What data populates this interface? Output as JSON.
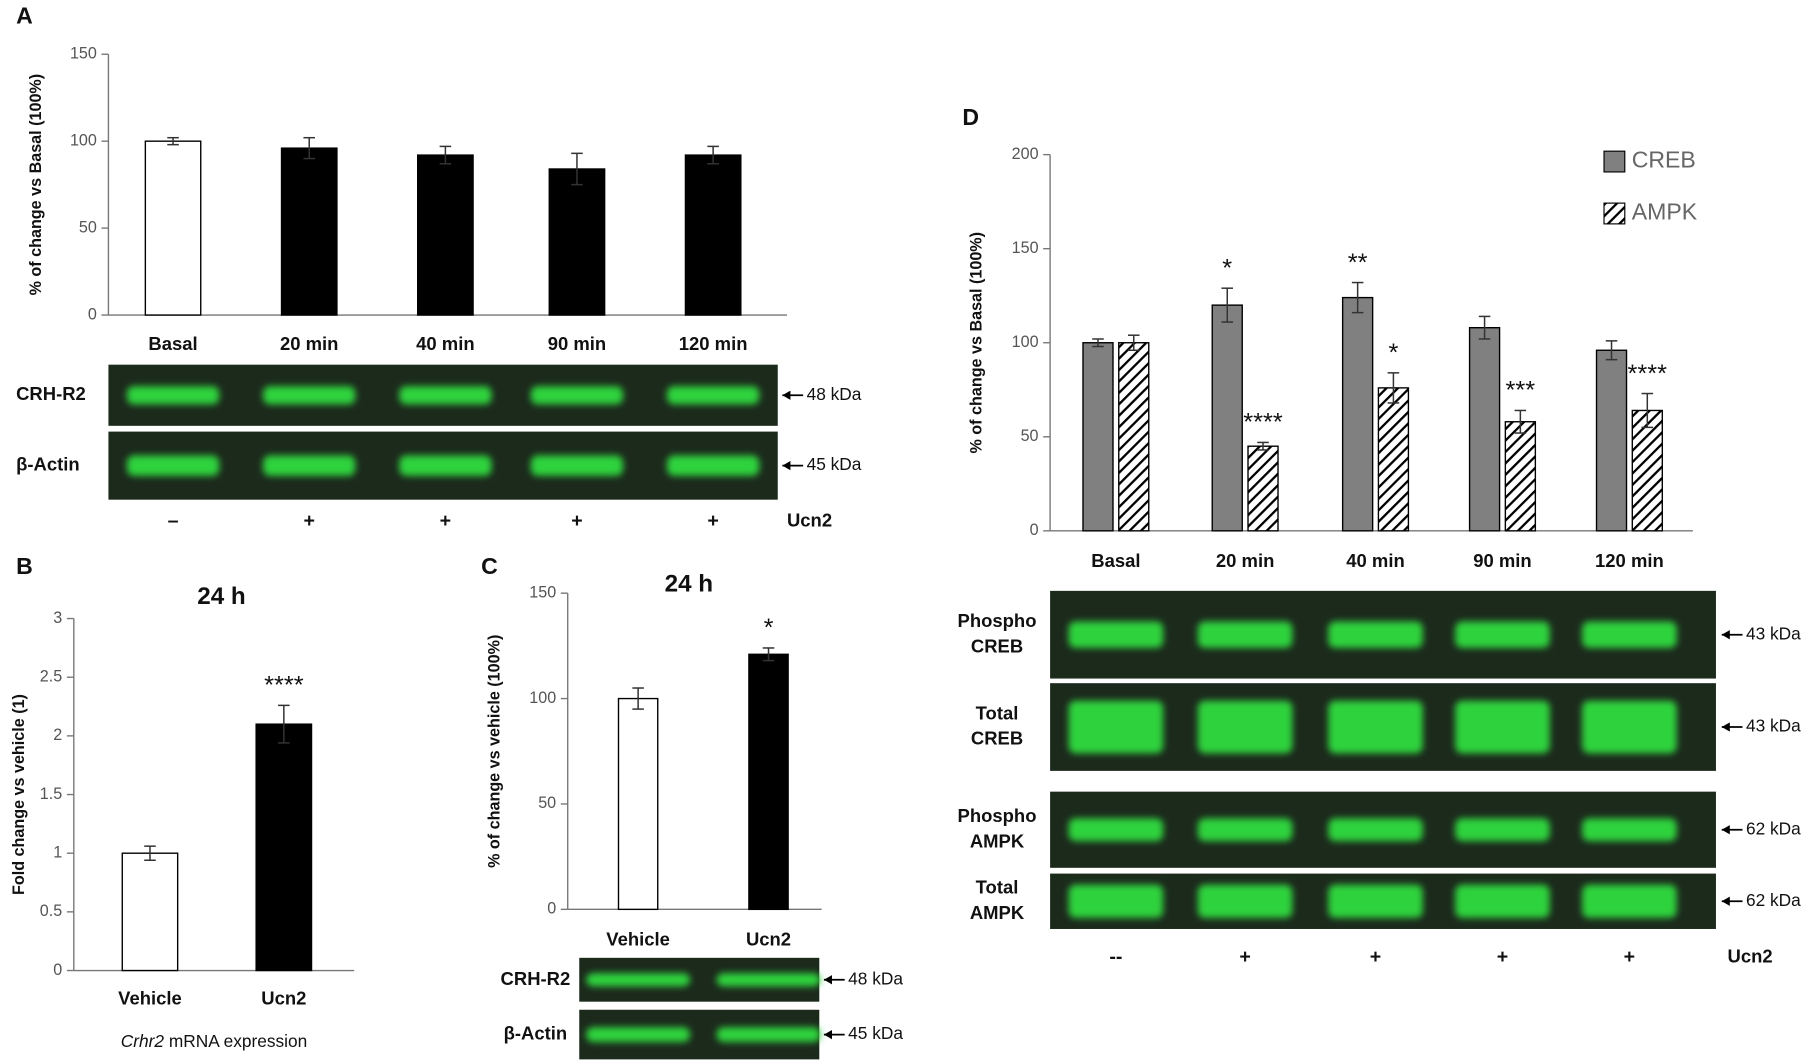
{
  "chart_data": [
    {
      "type": "bar",
      "panel": "A",
      "ylabel": "% of change vs Basal (100%)",
      "categories": [
        "Basal",
        "20 min",
        "40 min",
        "90 min",
        "120 min"
      ],
      "values": [
        100,
        96,
        92,
        84,
        92
      ],
      "errors": [
        2,
        6,
        5,
        9,
        5
      ],
      "colors": [
        "#ffffff",
        "#000000",
        "#000000",
        "#000000",
        "#000000"
      ],
      "ylim": [
        0,
        150
      ],
      "yticks": [
        0,
        50,
        100,
        150
      ],
      "blot": {
        "rows": [
          {
            "label": [
              "CRH-R2"
            ],
            "marker": "48 kDa"
          },
          {
            "label": [
              "β-Actin"
            ],
            "marker": "45 kDa"
          }
        ],
        "treatment": [
          "–",
          "+",
          "+",
          "+",
          "+"
        ],
        "treatment_label": "Ucn2"
      }
    },
    {
      "type": "bar",
      "panel": "B",
      "title": "24 h",
      "ylabel": "Fold change vs vehicle (1)",
      "xlabel": [
        "Crhr2",
        "mRNA expression"
      ],
      "categories": [
        "Vehicle",
        "Ucn2"
      ],
      "values": [
        1,
        2.1
      ],
      "errors": [
        0.06,
        0.16
      ],
      "colors": [
        "#ffffff",
        "#000000"
      ],
      "significance": [
        null,
        "****"
      ],
      "ylim": [
        0,
        3
      ],
      "yticks": [
        0,
        0.5,
        1,
        1.5,
        2,
        2.5,
        3
      ]
    },
    {
      "type": "bar",
      "panel": "C",
      "title": "24 h",
      "ylabel": "% of change vs vehicle (100%)",
      "categories": [
        "Vehicle",
        "Ucn2"
      ],
      "values": [
        100,
        121
      ],
      "errors": [
        5,
        3
      ],
      "colors": [
        "#ffffff",
        "#000000"
      ],
      "significance": [
        null,
        "*"
      ],
      "ylim": [
        0,
        150
      ],
      "yticks": [
        0,
        50,
        100,
        150
      ],
      "blot": {
        "rows": [
          {
            "label": [
              "CRH-R2"
            ],
            "marker": "48 kDa"
          },
          {
            "label": [
              "β-Actin"
            ],
            "marker": "45 kDa"
          }
        ]
      }
    },
    {
      "type": "bar",
      "panel": "D",
      "ylabel": "% of change vs Basal (100%)",
      "categories": [
        "Basal",
        "20 min",
        "40 min",
        "90 min",
        "120 min"
      ],
      "series": [
        {
          "name": "CREB",
          "color": "#808080",
          "values": [
            100,
            120,
            124,
            108,
            96
          ],
          "errors": [
            2,
            9,
            8,
            6,
            5
          ],
          "significance": [
            null,
            "*",
            "**",
            null,
            null
          ]
        },
        {
          "name": "AMPK",
          "color": "#ffffff",
          "hatch": true,
          "values": [
            100,
            45,
            76,
            58,
            64
          ],
          "errors": [
            4,
            2,
            8,
            6,
            9
          ],
          "significance": [
            null,
            "****",
            "*",
            "***",
            "****"
          ]
        }
      ],
      "ylim": [
        0,
        200
      ],
      "yticks": [
        0,
        50,
        100,
        150,
        200
      ],
      "legend": "top-right",
      "blot": {
        "rows": [
          {
            "label": [
              "Phospho",
              "CREB"
            ],
            "marker": "43 kDa"
          },
          {
            "label": [
              "Total",
              "CREB"
            ],
            "marker": "43 kDa"
          },
          {
            "label": [
              "Phospho",
              "AMPK"
            ],
            "marker": "62 kDa"
          },
          {
            "label": [
              "Total",
              "AMPK"
            ],
            "marker": "62 kDa"
          }
        ],
        "treatment": [
          "--",
          "+",
          "+",
          "+",
          "+"
        ],
        "treatment_label": "Ucn2"
      }
    }
  ]
}
